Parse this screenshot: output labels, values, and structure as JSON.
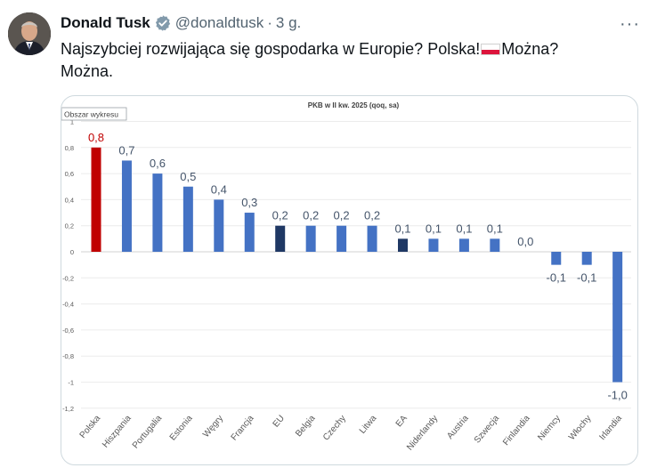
{
  "tweet": {
    "author_name": "Donald Tusk",
    "handle": "@donaldtusk",
    "separator": "·",
    "time": "3 g.",
    "more": "···",
    "text_before_flag": "Najszybciej rozwijająca się gospodarka w Europie? Polska!",
    "text_after_flag": "Można? Można.",
    "flag_icon": "poland-flag-icon"
  },
  "colors": {
    "bar_default": "#4472c4",
    "bar_highlight": "#c00000",
    "bar_aggregate": "#1f3864",
    "label_default": "#44546a",
    "label_highlight": "#c00000"
  },
  "chart_data": {
    "type": "bar",
    "title": "PKB w II kw. 2025 (qoq, sa)",
    "area_label": "Obszar wykresu",
    "categories": [
      "Polska",
      "Hiszpania",
      "Portugalia",
      "Estonia",
      "Węgry",
      "Francja",
      "EU",
      "Belgia",
      "Czechy",
      "Litwa",
      "EA",
      "Niderlandy",
      "Austria",
      "Szwecja",
      "Finlandia",
      "Niemcy",
      "Włochy",
      "Irlandia"
    ],
    "values": [
      0.8,
      0.7,
      0.6,
      0.5,
      0.4,
      0.3,
      0.2,
      0.2,
      0.2,
      0.2,
      0.1,
      0.1,
      0.1,
      0.1,
      0.0,
      -0.1,
      -0.1,
      -1.0
    ],
    "value_labels": [
      "0,8",
      "0,7",
      "0,6",
      "0,5",
      "0,4",
      "0,3",
      "0,2",
      "0,2",
      "0,2",
      "0,2",
      "0,1",
      "0,1",
      "0,1",
      "0,1",
      "0,0",
      "-0,1",
      "-0,1",
      "-1,0"
    ],
    "highlight": [
      "Polska"
    ],
    "aggregates": [
      "EU",
      "EA"
    ],
    "ylim": [
      -1.2,
      1.0
    ],
    "yticks": [
      1,
      0.8,
      0.6,
      0.4,
      0.2,
      0,
      -0.2,
      -0.4,
      -0.6,
      -0.8,
      -1,
      -1.2
    ],
    "ytick_labels": [
      "1",
      "0,8",
      "0,6",
      "0,4",
      "0,2",
      "0",
      "-0,2",
      "-0,4",
      "-0,6",
      "-0,8",
      "-1",
      "-1,2"
    ],
    "xlabel": "",
    "ylabel": "",
    "grid": true,
    "legend": "none"
  }
}
